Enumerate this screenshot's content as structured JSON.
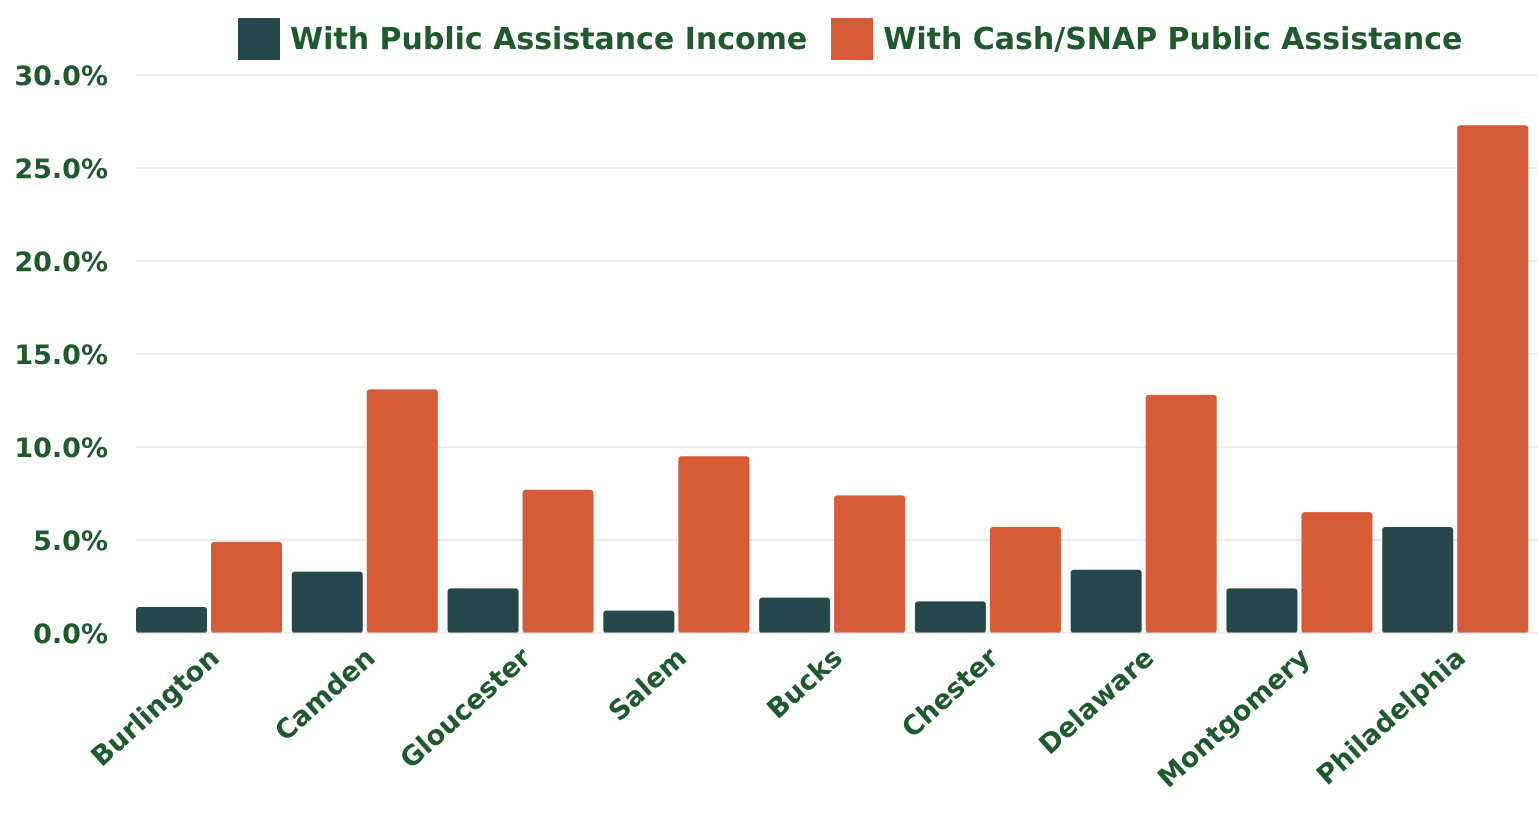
{
  "chart_data": {
    "type": "bar",
    "categories": [
      "Burlington",
      "Camden",
      "Gloucester",
      "Salem",
      "Bucks",
      "Chester",
      "Delaware",
      "Montgomery",
      "Philadelphia"
    ],
    "series": [
      {
        "name": "With Public Assistance Income",
        "color": "#27484a",
        "values": [
          1.4,
          3.3,
          2.4,
          1.2,
          1.9,
          1.7,
          3.4,
          2.4,
          5.7
        ]
      },
      {
        "name": "With Cash/SNAP Public Assistance",
        "color": "#d55c36",
        "values": [
          4.9,
          13.1,
          7.7,
          9.5,
          7.4,
          5.7,
          12.8,
          6.5,
          27.3
        ]
      }
    ],
    "ylim": [
      0,
      30
    ],
    "yticks": [
      "0.0%",
      "5.0%",
      "10.0%",
      "15.0%",
      "20.0%",
      "25.0%",
      "30.0%"
    ],
    "ytick_values": [
      0,
      5,
      10,
      15,
      20,
      25,
      30
    ],
    "grid": true,
    "legend_position": "top"
  }
}
